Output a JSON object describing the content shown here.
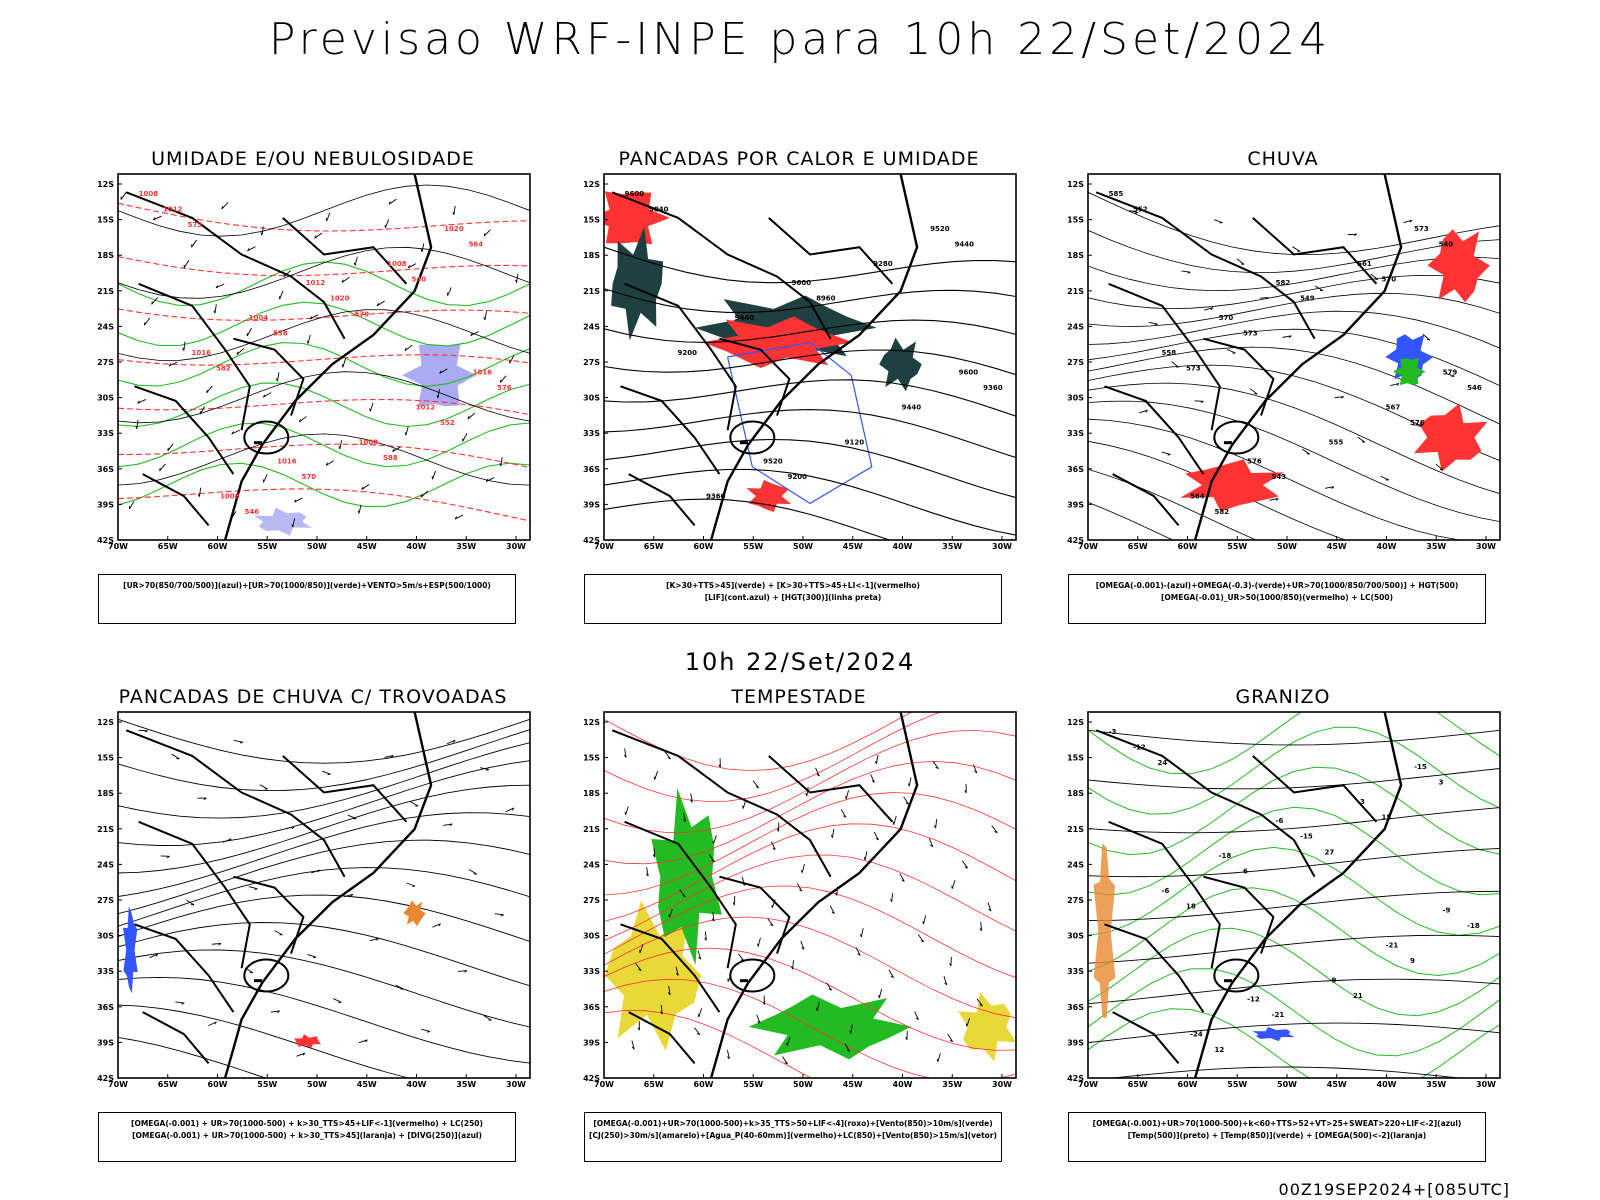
{
  "title": "Previsao WRF-INPE  para 10h 22/Set/2024",
  "subtitle": "10h 22/Set/2024",
  "footer": "00Z19SEP2024+[085UTC]",
  "axes": {
    "lat_labels": [
      "12S",
      "15S",
      "18S",
      "21S",
      "24S",
      "27S",
      "30S",
      "33S",
      "36S",
      "39S",
      "42S"
    ],
    "lon_labels": [
      "70W",
      "65W",
      "60W",
      "55W",
      "50W",
      "45W",
      "40W",
      "35W",
      "30W"
    ]
  },
  "colors": {
    "blue": "#3355ff",
    "green": "#22bb22",
    "red": "#ff3333",
    "dark": "#1e4040",
    "yellow": "#e8d838",
    "orange": "#e88830",
    "purple": "#8888ee"
  },
  "panels": [
    {
      "id": "umidade",
      "title": "UMIDADE E/OU NEBULOSIDADE",
      "legend": [
        "[UR>70(850/700/500)](azul)+[UR>70(1000/850)](verde)+VENTO>5m/s+ESP(500/1000)"
      ],
      "contour_labels": [
        "1008",
        "1012",
        "1016",
        "1016",
        "1020",
        "1004",
        "1012",
        "1008",
        "1008",
        "1016",
        "1008",
        "1012",
        "1020",
        "576",
        "570",
        "564",
        "558",
        "552",
        "546",
        "540",
        "582",
        "588",
        "573",
        "579"
      ]
    },
    {
      "id": "pancadas-calor",
      "title": "PANCADAS POR CALOR E UMIDADE",
      "legend": [
        "[K>30+TTS>45](verde) + [K>30+TTS>45+LI<-1](vermelho)",
        "[LIF](cont.azul) + [HGT(300)](linha preta)"
      ],
      "contour_labels": [
        "9600",
        "9600",
        "9600",
        "9520",
        "9520",
        "9440",
        "9440",
        "9360",
        "9280",
        "9200",
        "9120",
        "9040",
        "8960",
        "9360",
        "9200",
        "9440"
      ]
    },
    {
      "id": "chuva",
      "title": "CHUVA",
      "legend": [
        "[OMEGA(-0.001)-(azul)+OMEGA(-0.3)-(verde)+UR>70(1000/850/700/500)] + HGT(500)",
        "[OMEGA(-0.01)_UR>50(1000/850)(vermelho) + LC(500)"
      ],
      "contour_labels": [
        "585",
        "582",
        "579",
        "576",
        "573",
        "570",
        "567",
        "564",
        "561",
        "558",
        "555",
        "552",
        "549",
        "546",
        "543",
        "540",
        "573",
        "576",
        "582",
        "570",
        "573"
      ]
    },
    {
      "id": "trovoadas",
      "title": "PANCADAS DE CHUVA C/ TROVOADAS",
      "legend": [
        "[OMEGA(-0.001) + UR>70(1000-500) + k>30_TTS>45+LIF<-1](vermelho) + LC(250)",
        "[OMEGA(-0.001) + UR>70(1000-500) + k>30_TTS>45](laranja) + [DIVG(250)](azul)"
      ],
      "contour_labels": []
    },
    {
      "id": "tempestade",
      "title": "TEMPESTADE",
      "legend": [
        "[OMEGA(-0.001)+UR>70(1000-500)+k>35_TTS>50+LIF<-4](roxo)+[Vento(850)>10m/s](verde)",
        "[CJ(250)>30m/s](amarelo)+[Agua_P(40-60mm)](vermelho)+LC(850)+[Vento(850)>15m/s](vetor)"
      ],
      "contour_labels": []
    },
    {
      "id": "granizo",
      "title": "GRANIZO",
      "legend": [
        "[OMEGA(-0.001)+UR>70(1000-500)+k<60+TTS>52+VT>25+SWEAT>220+LIF<-2](azul)",
        "[Temp(500)](preto) + [Temp(850)](verde) + [OMEGA(500)<-2](laranja)"
      ],
      "contour_labels": [
        "-3",
        "-6",
        "-9",
        "-12",
        "-15",
        "-18",
        "-21",
        "-24",
        "-3",
        "-6",
        "-9",
        "-12",
        "-15",
        "-18",
        "-21",
        "3",
        "6",
        "9",
        "12",
        "15",
        "18",
        "21",
        "24",
        "27"
      ]
    }
  ]
}
